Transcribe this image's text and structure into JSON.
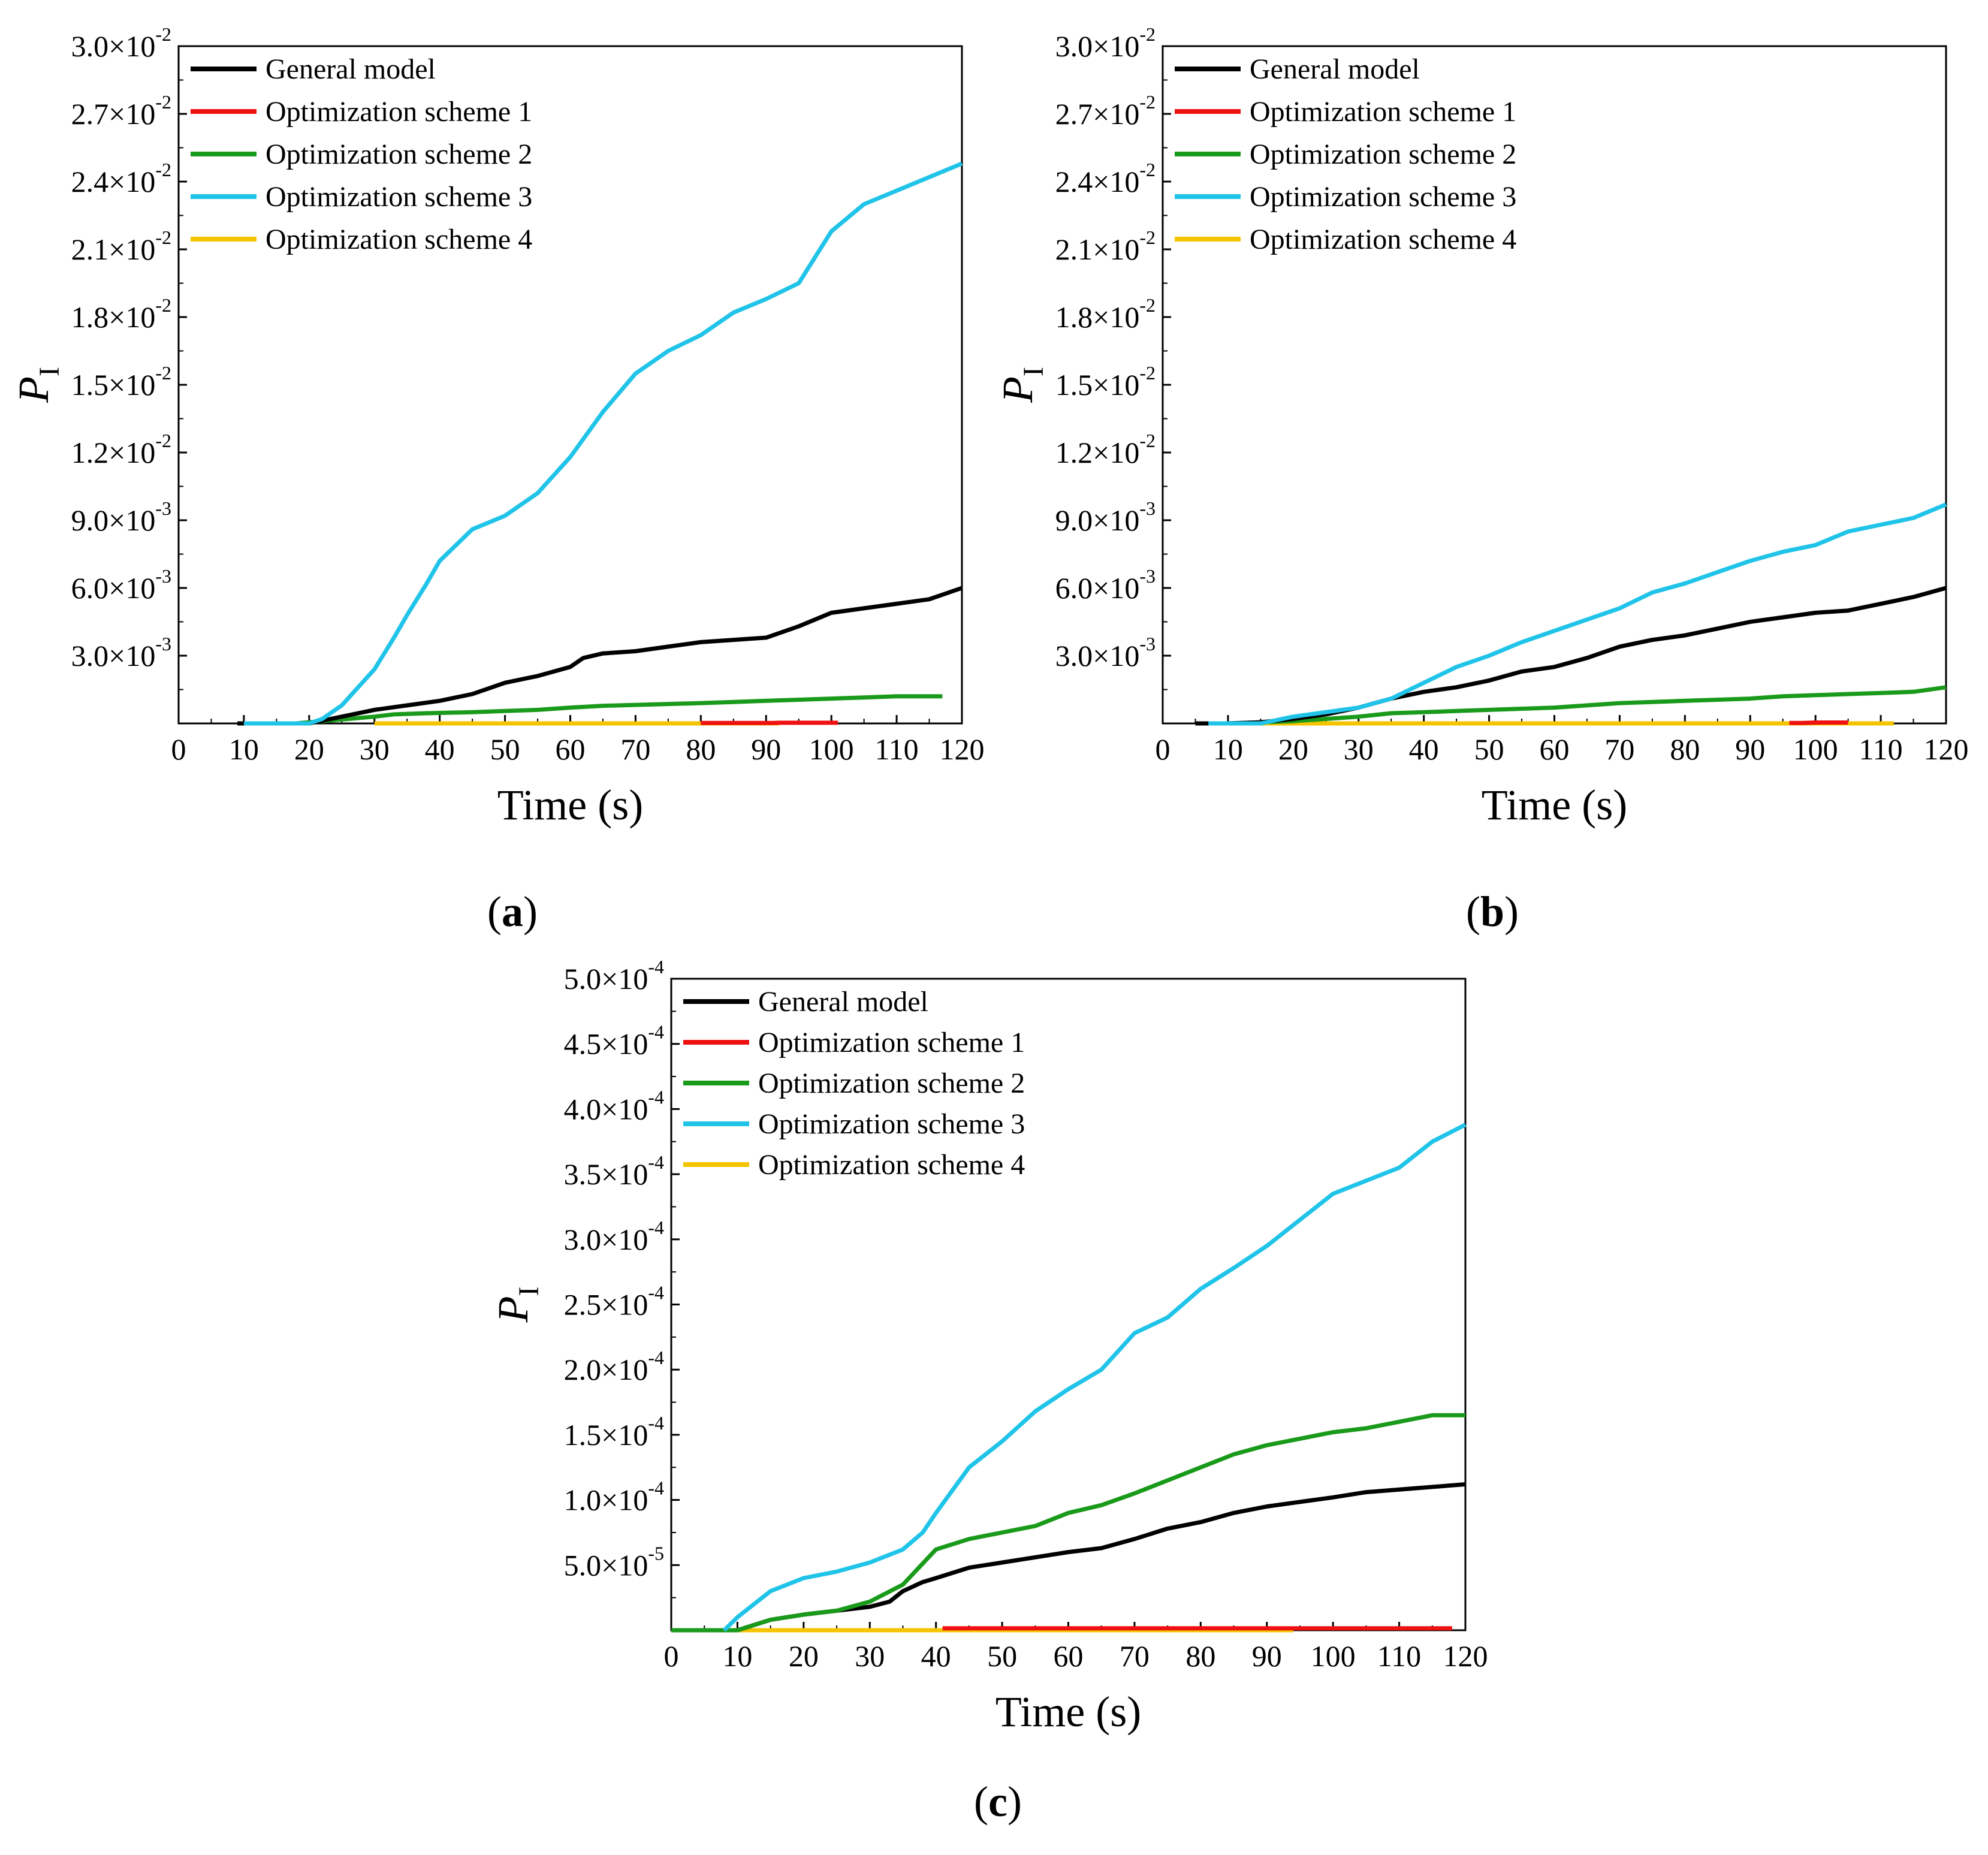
{
  "figure": {
    "panels": [
      "(a)",
      "(b)",
      "(c)"
    ]
  },
  "legend_colors": {
    "general": "#000000",
    "opt1": "#ee1111",
    "opt2": "#1a9a1a",
    "opt3": "#20c4e8",
    "opt4": "#f5c400"
  },
  "chart_data": [
    {
      "id": "a",
      "type": "line",
      "panel_label": "(a)",
      "panel_label_letter": "a",
      "title": "",
      "xlabel": "Time (s)",
      "ylabel": "P",
      "ylabel_sub": "I",
      "xlim": [
        0,
        120
      ],
      "ylim": [
        0,
        0.03
      ],
      "xticks": [
        0,
        10,
        20,
        30,
        40,
        50,
        60,
        70,
        80,
        90,
        100,
        110,
        120
      ],
      "yticks": [
        {
          "v": 0.003,
          "base": "3.0×10",
          "exp": "-3"
        },
        {
          "v": 0.006,
          "base": "6.0×10",
          "exp": "-3"
        },
        {
          "v": 0.009,
          "base": "9.0×10",
          "exp": "-3"
        },
        {
          "v": 0.012,
          "base": "1.2×10",
          "exp": "-2"
        },
        {
          "v": 0.015,
          "base": "1.5×10",
          "exp": "-2"
        },
        {
          "v": 0.018,
          "base": "1.8×10",
          "exp": "-2"
        },
        {
          "v": 0.021,
          "base": "2.1×10",
          "exp": "-2"
        },
        {
          "v": 0.024,
          "base": "2.4×10",
          "exp": "-2"
        },
        {
          "v": 0.027,
          "base": "2.7×10",
          "exp": "-2"
        },
        {
          "v": 0.03,
          "base": "3.0×10",
          "exp": "-2"
        }
      ],
      "legend": [
        "General model",
        "Optimization scheme 1",
        "Optimization scheme 2",
        "Optimization scheme 3",
        "Optimization scheme 4"
      ],
      "series": [
        {
          "name": "Optimization scheme 4",
          "key": "opt4",
          "x": [
            30,
            92
          ],
          "y": [
            0,
            0
          ]
        },
        {
          "name": "Optimization scheme 1",
          "key": "opt1",
          "x": [
            80,
            91,
            92,
            101
          ],
          "y": [
            2e-05,
            2e-05,
            3e-05,
            3e-05
          ]
        },
        {
          "name": "Optimization scheme 2",
          "key": "opt2",
          "x": [
            18,
            22,
            26,
            30,
            33,
            38,
            45,
            50,
            55,
            60,
            65,
            70,
            75,
            80,
            85,
            90,
            95,
            100,
            105,
            110,
            117
          ],
          "y": [
            0,
            0.0001,
            0.0002,
            0.0003,
            0.0004,
            0.00045,
            0.0005,
            0.00055,
            0.0006,
            0.0007,
            0.00078,
            0.00082,
            0.00086,
            0.0009,
            0.00095,
            0.001,
            0.00105,
            0.0011,
            0.00115,
            0.0012,
            0.0012
          ]
        },
        {
          "name": "General model",
          "key": "general",
          "x": [
            9,
            20,
            25,
            30,
            35,
            40,
            45,
            50,
            55,
            60,
            62,
            65,
            70,
            75,
            80,
            85,
            90,
            95,
            100,
            105,
            110,
            115,
            120
          ],
          "y": [
            0,
            0,
            0.0003,
            0.0006,
            0.0008,
            0.001,
            0.0013,
            0.0018,
            0.0021,
            0.0025,
            0.0029,
            0.0031,
            0.0032,
            0.0034,
            0.0036,
            0.0037,
            0.0038,
            0.0043,
            0.0049,
            0.0051,
            0.0053,
            0.0055,
            0.006
          ]
        },
        {
          "name": "Optimization scheme 3",
          "key": "opt3",
          "x": [
            10,
            20,
            22,
            25,
            30,
            33,
            35,
            38,
            40,
            45,
            50,
            55,
            60,
            65,
            70,
            75,
            80,
            85,
            90,
            95,
            100,
            105,
            110,
            115,
            120
          ],
          "y": [
            0,
            0,
            0.0002,
            0.0008,
            0.0024,
            0.0038,
            0.0048,
            0.0062,
            0.0072,
            0.0086,
            0.0092,
            0.0102,
            0.0118,
            0.0138,
            0.0155,
            0.0165,
            0.0172,
            0.0182,
            0.0188,
            0.0195,
            0.0218,
            0.023,
            0.0236,
            0.0242,
            0.0248
          ]
        }
      ]
    },
    {
      "id": "b",
      "type": "line",
      "panel_label": "(b)",
      "panel_label_letter": "b",
      "title": "",
      "xlabel": "Time (s)",
      "ylabel": "P",
      "ylabel_sub": "I",
      "xlim": [
        0,
        120
      ],
      "ylim": [
        0,
        0.03
      ],
      "xticks": [
        0,
        10,
        20,
        30,
        40,
        50,
        60,
        70,
        80,
        90,
        100,
        110,
        120
      ],
      "yticks": [
        {
          "v": 0.003,
          "base": "3.0×10",
          "exp": "-3"
        },
        {
          "v": 0.006,
          "base": "6.0×10",
          "exp": "-3"
        },
        {
          "v": 0.009,
          "base": "9.0×10",
          "exp": "-3"
        },
        {
          "v": 0.012,
          "base": "1.2×10",
          "exp": "-2"
        },
        {
          "v": 0.015,
          "base": "1.5×10",
          "exp": "-2"
        },
        {
          "v": 0.018,
          "base": "1.8×10",
          "exp": "-2"
        },
        {
          "v": 0.021,
          "base": "2.1×10",
          "exp": "-2"
        },
        {
          "v": 0.024,
          "base": "2.4×10",
          "exp": "-2"
        },
        {
          "v": 0.027,
          "base": "2.7×10",
          "exp": "-2"
        },
        {
          "v": 0.03,
          "base": "3.0×10",
          "exp": "-2"
        }
      ],
      "legend": [
        "General model",
        "Optimization scheme 1",
        "Optimization scheme 2",
        "Optimization scheme 3",
        "Optimization scheme 4"
      ],
      "series": [
        {
          "name": "Optimization scheme 4",
          "key": "opt4",
          "x": [
            15,
            112
          ],
          "y": [
            0,
            0
          ]
        },
        {
          "name": "Optimization scheme 1",
          "key": "opt1",
          "x": [
            96,
            98,
            100,
            105
          ],
          "y": [
            2e-05,
            2e-05,
            4e-05,
            4e-05
          ]
        },
        {
          "name": "Optimization scheme 2",
          "key": "opt2",
          "x": [
            10,
            15,
            20,
            25,
            30,
            35,
            40,
            45,
            50,
            55,
            60,
            65,
            70,
            75,
            80,
            85,
            90,
            95,
            100,
            105,
            110,
            115,
            120
          ],
          "y": [
            0,
            5e-05,
            0.0001,
            0.0002,
            0.0003,
            0.00045,
            0.0005,
            0.00055,
            0.0006,
            0.00065,
            0.0007,
            0.0008,
            0.0009,
            0.00095,
            0.001,
            0.00105,
            0.0011,
            0.0012,
            0.00125,
            0.0013,
            0.00135,
            0.0014,
            0.0016
          ]
        },
        {
          "name": "General model",
          "key": "general",
          "x": [
            5,
            10,
            15,
            20,
            25,
            30,
            35,
            40,
            45,
            50,
            55,
            60,
            65,
            70,
            75,
            80,
            85,
            90,
            95,
            100,
            105,
            110,
            115,
            120
          ],
          "y": [
            0,
            0,
            5e-05,
            0.0002,
            0.0004,
            0.0007,
            0.0011,
            0.0014,
            0.0016,
            0.0019,
            0.0023,
            0.0025,
            0.0029,
            0.0034,
            0.0037,
            0.0039,
            0.0042,
            0.0045,
            0.0047,
            0.0049,
            0.005,
            0.0053,
            0.0056,
            0.006
          ]
        },
        {
          "name": "Optimization scheme 3",
          "key": "opt3",
          "x": [
            7,
            15,
            20,
            25,
            30,
            35,
            40,
            45,
            50,
            55,
            60,
            65,
            70,
            75,
            80,
            85,
            90,
            95,
            100,
            105,
            110,
            115,
            120
          ],
          "y": [
            0,
            0,
            0.0003,
            0.0005,
            0.0007,
            0.0011,
            0.0018,
            0.0025,
            0.003,
            0.0036,
            0.0041,
            0.0046,
            0.0051,
            0.0058,
            0.0062,
            0.0067,
            0.0072,
            0.0076,
            0.0079,
            0.0085,
            0.0088,
            0.0091,
            0.0097
          ]
        }
      ]
    },
    {
      "id": "c",
      "type": "line",
      "panel_label": "(c)",
      "panel_label_letter": "c",
      "title": "",
      "xlabel": "Time (s)",
      "ylabel": "P",
      "ylabel_sub": "I",
      "xlim": [
        0,
        120
      ],
      "ylim": [
        0,
        0.0005
      ],
      "xticks": [
        0,
        10,
        20,
        30,
        40,
        50,
        60,
        70,
        80,
        90,
        100,
        110,
        120
      ],
      "yticks": [
        {
          "v": 5e-05,
          "base": "5.0×10",
          "exp": "-5"
        },
        {
          "v": 0.0001,
          "base": "1.0×10",
          "exp": "-4"
        },
        {
          "v": 0.00015,
          "base": "1.5×10",
          "exp": "-4"
        },
        {
          "v": 0.0002,
          "base": "2.0×10",
          "exp": "-4"
        },
        {
          "v": 0.00025,
          "base": "2.5×10",
          "exp": "-4"
        },
        {
          "v": 0.0003,
          "base": "3.0×10",
          "exp": "-4"
        },
        {
          "v": 0.00035,
          "base": "3.5×10",
          "exp": "-4"
        },
        {
          "v": 0.0004,
          "base": "4.0×10",
          "exp": "-4"
        },
        {
          "v": 0.00045,
          "base": "4.5×10",
          "exp": "-4"
        },
        {
          "v": 0.0005,
          "base": "5.0×10",
          "exp": "-4"
        }
      ],
      "legend": [
        "General model",
        "Optimization scheme 1",
        "Optimization scheme 2",
        "Optimization scheme 3",
        "Optimization scheme 4"
      ],
      "series": [
        {
          "name": "Optimization scheme 4",
          "key": "opt4",
          "x": [
            0,
            94
          ],
          "y": [
            0,
            0
          ]
        },
        {
          "name": "Optimization scheme 1",
          "key": "opt1",
          "x": [
            41,
            94,
            118
          ],
          "y": [
            1.5e-06,
            1.5e-06,
            1.5e-06
          ]
        },
        {
          "name": "General model",
          "key": "general",
          "x": [
            0,
            10,
            15,
            20,
            25,
            30,
            33,
            35,
            38,
            40,
            45,
            50,
            55,
            60,
            65,
            70,
            75,
            80,
            85,
            90,
            95,
            100,
            105,
            110,
            115,
            120
          ],
          "y": [
            0,
            0,
            8e-06,
            1.2e-05,
            1.5e-05,
            1.8e-05,
            2.2e-05,
            3e-05,
            3.7e-05,
            4e-05,
            4.8e-05,
            5.2e-05,
            5.6e-05,
            6e-05,
            6.3e-05,
            7e-05,
            7.8e-05,
            8.3e-05,
            9e-05,
            9.5e-05,
            9.85e-05,
            0.000102,
            0.000106,
            0.000108,
            0.00011,
            0.000112
          ]
        },
        {
          "name": "Optimization scheme 2",
          "key": "opt2",
          "x": [
            0,
            10,
            15,
            20,
            25,
            30,
            35,
            40,
            45,
            50,
            55,
            60,
            65,
            70,
            75,
            80,
            85,
            90,
            95,
            100,
            105,
            110,
            115,
            120
          ],
          "y": [
            0,
            0,
            8e-06,
            1.2e-05,
            1.5e-05,
            2.2e-05,
            3.5e-05,
            6.2e-05,
            7e-05,
            7.5e-05,
            8e-05,
            9e-05,
            9.6e-05,
            0.000105,
            0.000115,
            0.000125,
            0.000135,
            0.000142,
            0.000147,
            0.000152,
            0.000155,
            0.00016,
            0.000165,
            0.000165
          ]
        },
        {
          "name": "Optimization scheme 3",
          "key": "opt3",
          "x": [
            8,
            10,
            15,
            20,
            25,
            30,
            35,
            38,
            40,
            45,
            50,
            55,
            60,
            65,
            70,
            75,
            80,
            85,
            90,
            95,
            100,
            105,
            110,
            115,
            120
          ],
          "y": [
            0,
            1e-05,
            3e-05,
            4e-05,
            4.5e-05,
            5.2e-05,
            6.2e-05,
            7.5e-05,
            9e-05,
            0.000125,
            0.000145,
            0.000168,
            0.000185,
            0.0002,
            0.000228,
            0.00024,
            0.000262,
            0.000278,
            0.000295,
            0.000315,
            0.000335,
            0.000345,
            0.000355,
            0.000375,
            0.000388
          ]
        }
      ]
    }
  ]
}
